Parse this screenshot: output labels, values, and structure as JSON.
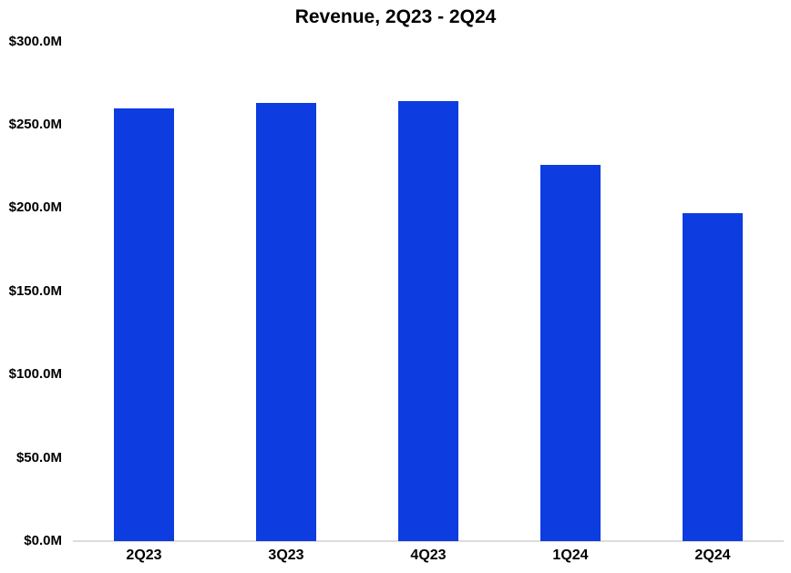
{
  "page": {
    "background": "#ffffff"
  },
  "chart_data": {
    "type": "bar",
    "title": "Revenue, 2Q23 - 2Q24",
    "categories": [
      "2Q23",
      "3Q23",
      "4Q23",
      "1Q24",
      "2Q24"
    ],
    "values": [
      260,
      263,
      264,
      226,
      197
    ],
    "series_name": "Revenue",
    "ylim": [
      0,
      300
    ],
    "ytick_interval": 50,
    "yticks": [
      {
        "value": 0,
        "label": "$0.0M"
      },
      {
        "value": 50,
        "label": "$50.0M"
      },
      {
        "value": 100,
        "label": "$100.0M"
      },
      {
        "value": 150,
        "label": "$150.0M"
      },
      {
        "value": 200,
        "label": "$200.0M"
      },
      {
        "value": 250,
        "label": "$250.0M"
      },
      {
        "value": 300,
        "label": "$300.0M"
      }
    ],
    "xlabel": "",
    "ylabel": "",
    "grid": false,
    "legend": false,
    "colors": {
      "bar": "#0d3ce0",
      "axis_line": "#dcdcdc",
      "text": "#000000",
      "background": "#ffffff"
    }
  }
}
